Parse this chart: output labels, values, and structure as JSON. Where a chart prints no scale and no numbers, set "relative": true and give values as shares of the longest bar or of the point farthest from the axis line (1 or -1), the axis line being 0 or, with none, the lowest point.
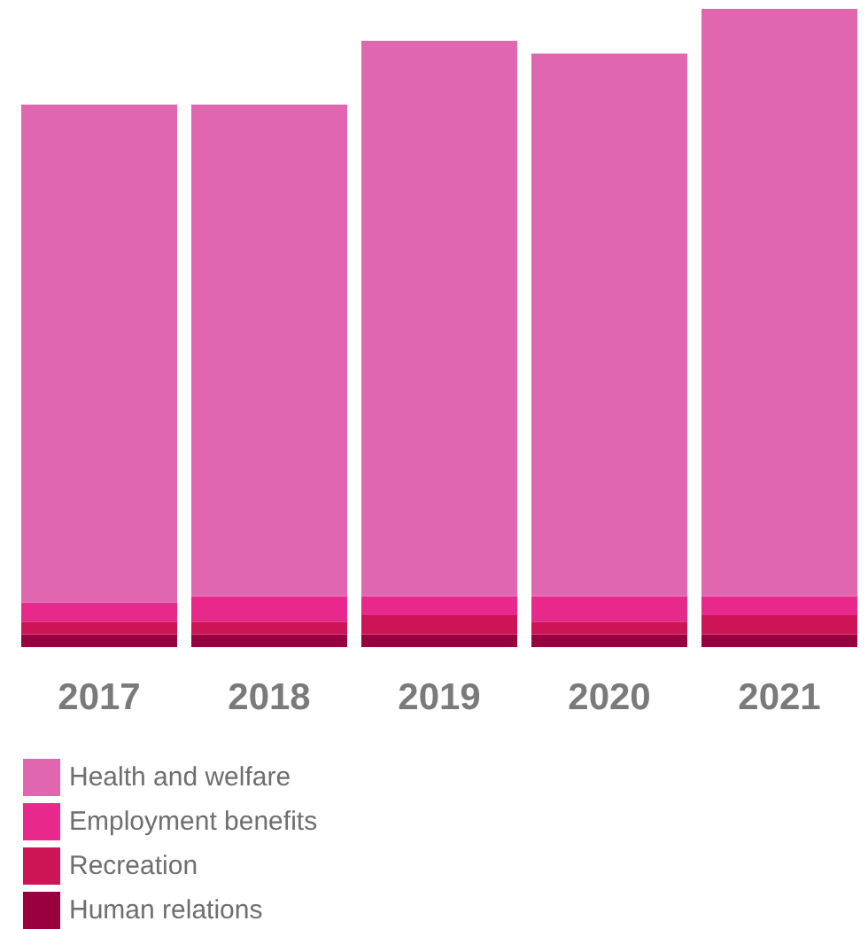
{
  "chart_data": {
    "type": "bar",
    "stacked": true,
    "relative": true,
    "legend": "bottom left",
    "categories": [
      "2017",
      "2018",
      "2019",
      "2020",
      "2021"
    ],
    "series": [
      {
        "name": "Human relations",
        "color": "#990040",
        "values": [
          0.02,
          0.02,
          0.02,
          0.02,
          0.02
        ]
      },
      {
        "name": "Recreation",
        "color": "#cc1456",
        "values": [
          0.02,
          0.02,
          0.03,
          0.02,
          0.03
        ]
      },
      {
        "name": "Employment benefits",
        "color": "#e8288a",
        "values": [
          0.03,
          0.04,
          0.03,
          0.04,
          0.03
        ]
      },
      {
        "name": "Health and welfare",
        "color": "#e066b0",
        "values": [
          0.78,
          0.77,
          0.87,
          0.85,
          0.92
        ]
      }
    ]
  }
}
